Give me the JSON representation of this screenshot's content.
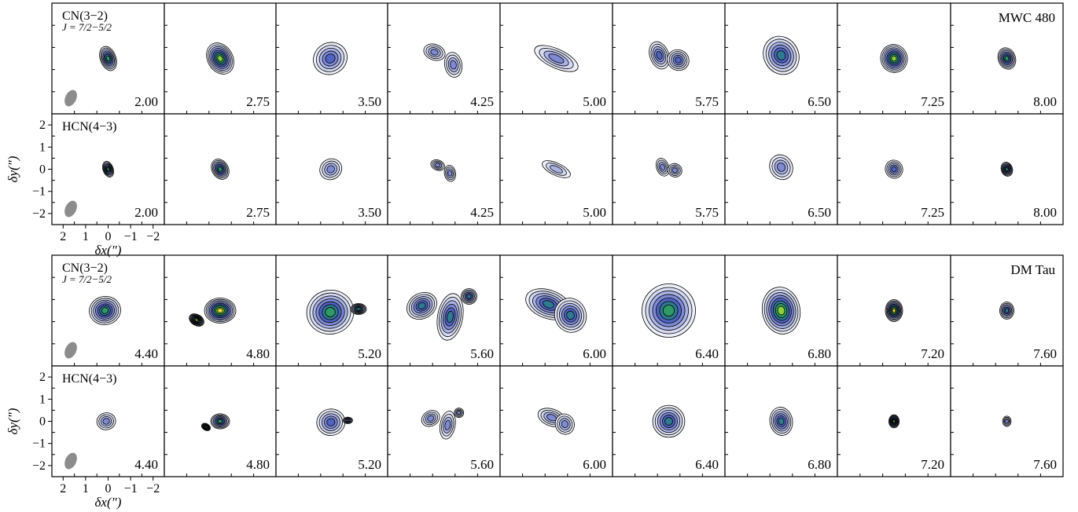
{
  "colors": {
    "fill_levels": [
      "#eef0f9",
      "#d5daf1",
      "#aab3e5",
      "#7e8ad3",
      "#4f63c0",
      "#2f7a8f",
      "#2f9a66",
      "#8fcf3a",
      "#f2e53b",
      "#f08a24"
    ],
    "contour": "#000000",
    "beam": "#8c8c8c",
    "frame": "#000000"
  },
  "axes": {
    "xlabel": "δx(\")",
    "ylabel": "δy(\")",
    "xticks": [
      "2",
      "1",
      "0",
      "−1",
      "−2"
    ],
    "yticks": [
      "2",
      "1",
      "0",
      "−1",
      "−2"
    ],
    "xlim": [
      2.6,
      -2.6
    ],
    "ylim": [
      -2.6,
      2.6
    ]
  },
  "chart_data": {
    "type": "heatmap",
    "description_kind": "channel-map contour grid",
    "sources": [
      {
        "name": "MWC 480",
        "rows": [
          {
            "molecule": "CN(3−2)",
            "transition": "J = 7/2−5/2",
            "velocities": [
              "2.00",
              "2.75",
              "3.50",
              "4.25",
              "5.00",
              "5.75",
              "6.50",
              "7.25",
              "8.00"
            ],
            "peak_level": [
              7,
              8,
              5,
              4,
              4,
              5,
              6,
              8,
              7
            ]
          },
          {
            "molecule": "HCN(4−3)",
            "transition": "",
            "velocities": [
              "2.00",
              "2.75",
              "3.50",
              "4.25",
              "5.00",
              "5.75",
              "6.50",
              "7.25",
              "8.00"
            ],
            "peak_level": [
              7,
              7,
              4,
              4,
              3,
              4,
              4,
              5,
              7
            ]
          }
        ]
      },
      {
        "name": "DM Tau",
        "rows": [
          {
            "molecule": "CN(3−2)",
            "transition": "J = 7/2−5/2",
            "velocities": [
              "4.40",
              "4.80",
              "5.20",
              "5.60",
              "6.00",
              "6.40",
              "6.80",
              "7.20",
              "7.60"
            ],
            "peak_level": [
              7,
              9,
              7,
              6,
              6,
              7,
              8,
              9,
              6
            ]
          },
          {
            "molecule": "HCN(4−3)",
            "transition": "",
            "velocities": [
              "4.40",
              "4.80",
              "5.20",
              "5.60",
              "6.00",
              "6.40",
              "6.80",
              "7.20",
              "7.60"
            ],
            "peak_level": [
              4,
              7,
              5,
              4,
              4,
              6,
              6,
              8,
              4
            ]
          }
        ]
      }
    ]
  }
}
